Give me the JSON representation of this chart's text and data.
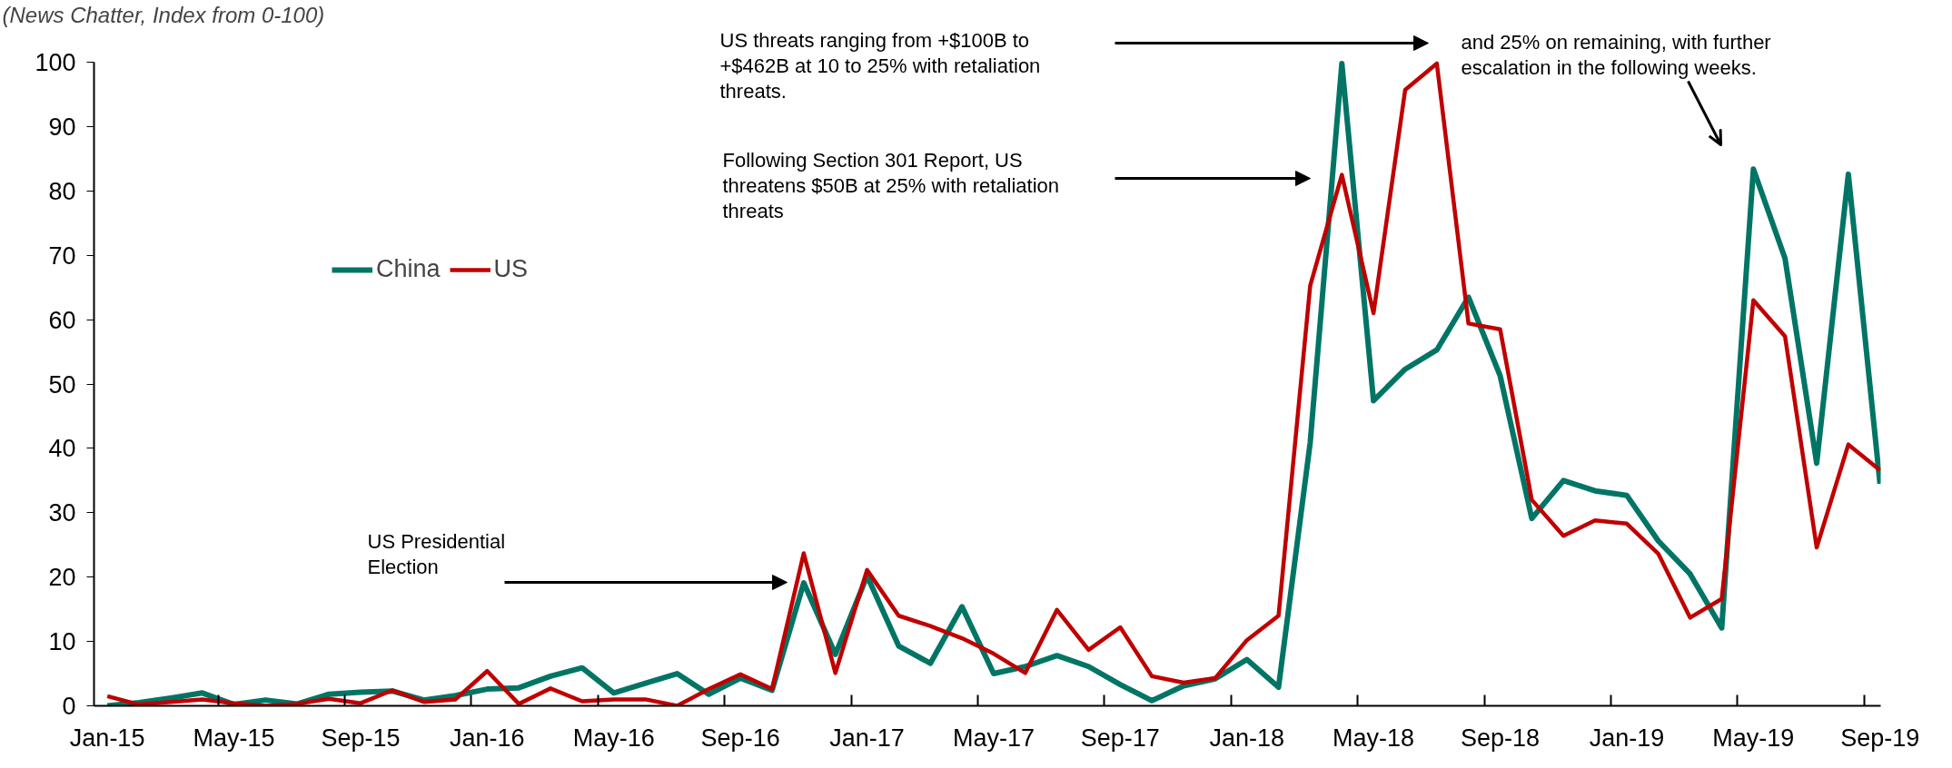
{
  "chart_data": {
    "type": "line",
    "subtitle": "(News Chatter, Index from 0-100)",
    "categories": [
      "Jan-15",
      null,
      null,
      null,
      "May-15",
      null,
      null,
      null,
      "Sep-15",
      null,
      null,
      null,
      "Jan-16",
      null,
      null,
      null,
      "May-16",
      null,
      null,
      null,
      "Sep-16",
      null,
      null,
      null,
      "Jan-17",
      null,
      null,
      null,
      "May-17",
      null,
      null,
      null,
      "Sep-17",
      null,
      null,
      null,
      "Jan-18",
      null,
      null,
      null,
      "May-18",
      null,
      null,
      null,
      "Sep-18",
      null,
      null,
      null,
      "Jan-19",
      null,
      null,
      null,
      "May-19",
      null,
      null,
      null,
      "Sep-19"
    ],
    "series": [
      {
        "name": "China",
        "color": "#007565",
        "values": [
          0,
          0.5,
          1.2,
          2.0,
          0.2,
          0.9,
          0.3,
          1.8,
          2.1,
          2.3,
          0.9,
          1.6,
          2.6,
          2.8,
          4.6,
          5.9,
          2.0,
          3.5,
          5.0,
          1.8,
          4.3,
          2.4,
          19.1,
          8.0,
          20.2,
          9.3,
          6.6,
          15.4,
          5.0,
          6.1,
          7.8,
          6.1,
          3.3,
          0.8,
          3.1,
          4.2,
          7.2,
          2.9,
          40.9,
          99.8,
          47.4,
          52.3,
          55.3,
          63.5,
          51.3,
          29.1,
          35.0,
          33.4,
          32.7,
          25.6,
          20.5,
          12.1,
          83.4,
          69.5,
          37.7,
          82.6,
          34.5
        ]
      },
      {
        "name": "US",
        "color": "#c00000",
        "values": [
          1.5,
          0.2,
          0.6,
          1.0,
          0.4,
          0,
          0.3,
          1.1,
          0.4,
          2.4,
          0.6,
          1.0,
          5.4,
          0.3,
          2.7,
          0.7,
          1.0,
          1.0,
          0,
          2.6,
          4.9,
          2.6,
          23.7,
          5.1,
          21.1,
          14.0,
          12.4,
          10.5,
          8.1,
          5.1,
          14.9,
          8.7,
          12.2,
          4.6,
          3.6,
          4.3,
          10.2,
          14.0,
          65.3,
          82.5,
          61.0,
          95.7,
          99.8,
          59.4,
          58.5,
          32.0,
          26.4,
          28.8,
          28.3,
          23.6,
          13.7,
          16.6,
          63.0,
          57.4,
          24.6,
          40.6,
          36.6
        ]
      }
    ],
    "ylim": [
      0,
      100
    ],
    "yticks": [
      0,
      10,
      20,
      30,
      40,
      50,
      60,
      70,
      80,
      90,
      100
    ],
    "grid": false,
    "legend": "left",
    "line_style": "solid",
    "marker": "none",
    "annotations": [
      "US Presidential Election",
      "Following Section 301 Report, US threatens $50B at 25% with retaliation threats",
      "US threats ranging from +$100B to +$462B at 10 to 25% with retaliation threats.",
      "and 25% on remaining, with further escalation in the following weeks."
    ]
  }
}
